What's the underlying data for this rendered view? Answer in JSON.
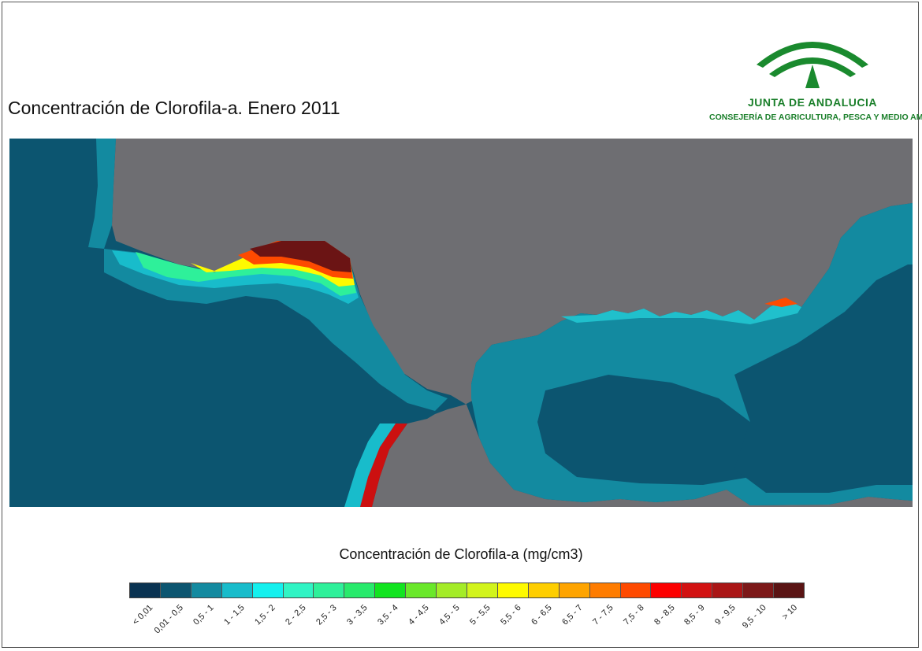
{
  "title": "Concentración de Clorofila-a. Enero 2011",
  "logo": {
    "line1": "JUNTA DE ANDALUCIA",
    "line2": "CONSEJERÍA DE AGRICULTURA, PESCA Y MEDIO AMBIENTE",
    "color": "#1a7f2a"
  },
  "map": {
    "land_color": "#6e6e72",
    "ocean_base_color": "#0c5570",
    "coast_colors": [
      "#1c93a8",
      "#20c0cc",
      "#3fe6c4",
      "#fff700",
      "#ff6a00",
      "#cc1010",
      "#6b1414"
    ]
  },
  "legend": {
    "title": "Concentración de Clorofila-a (mg/cm3)",
    "items": [
      {
        "label": "< 0,01",
        "color": "#0a3352"
      },
      {
        "label": "0,01 - 0,5",
        "color": "#0c5570"
      },
      {
        "label": "0,5 - 1",
        "color": "#138aa0"
      },
      {
        "label": "1 - 1,5",
        "color": "#18bccb"
      },
      {
        "label": "1,5 - 2",
        "color": "#14f0ee"
      },
      {
        "label": "2 - 2,5",
        "color": "#30f4c4"
      },
      {
        "label": "2,5 - 3",
        "color": "#2ef09a"
      },
      {
        "label": "3 - 3,5",
        "color": "#28ea6c"
      },
      {
        "label": "3,5 - 4",
        "color": "#12e420"
      },
      {
        "label": "4 - 4,5",
        "color": "#6ae82a"
      },
      {
        "label": "4,5 - 5",
        "color": "#a4ec28"
      },
      {
        "label": "5 - 5,5",
        "color": "#d2f41c"
      },
      {
        "label": "5,5 - 6",
        "color": "#fefa00"
      },
      {
        "label": "6 - 6,5",
        "color": "#fece00"
      },
      {
        "label": "6,5 - 7",
        "color": "#fea400"
      },
      {
        "label": "7 - 7,5",
        "color": "#fe7c00"
      },
      {
        "label": "7,5 - 8",
        "color": "#fe4a00"
      },
      {
        "label": "8 - 8,5",
        "color": "#fc0000"
      },
      {
        "label": "8,5 - 9",
        "color": "#d21212"
      },
      {
        "label": "9 - 9,5",
        "color": "#aa1616"
      },
      {
        "label": "9,5 - 10",
        "color": "#7c1818"
      },
      {
        "label": "> 10",
        "color": "#5a1414"
      }
    ]
  }
}
